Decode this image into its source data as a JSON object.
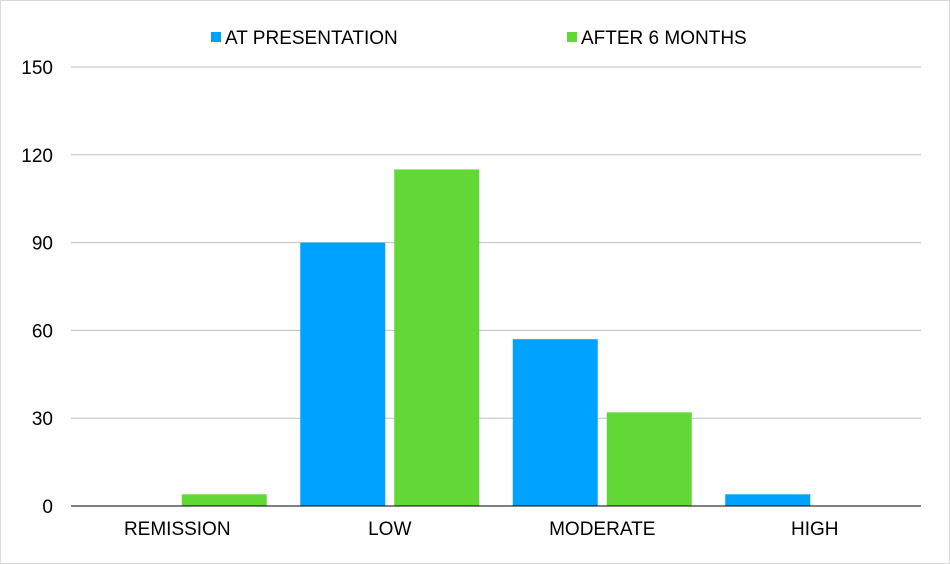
{
  "chart_data": {
    "type": "bar",
    "title": "",
    "xlabel": "",
    "ylabel": "",
    "categories": [
      "REMISSION",
      "LOW",
      "MODERATE",
      "HIGH"
    ],
    "series": [
      {
        "name": "AT PRESENTATION",
        "color": "#00A2FF",
        "values": [
          0,
          90,
          57,
          4
        ]
      },
      {
        "name": "AFTER 6 MONTHS",
        "color": "#61D836",
        "values": [
          4,
          115,
          32,
          0
        ]
      }
    ],
    "ylim": [
      0,
      150
    ],
    "yticks": [
      0,
      30,
      60,
      90,
      120,
      150
    ],
    "grid": true,
    "legend_position": "top"
  }
}
